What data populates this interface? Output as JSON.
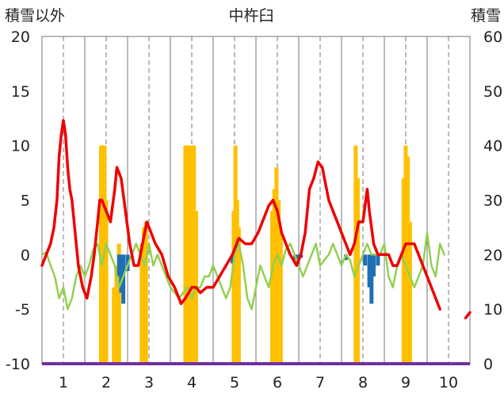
{
  "chart_data": {
    "type": "line",
    "title": "中杵臼",
    "y_left_label": "積雪以外",
    "y_right_label": "積雪",
    "y_left_range": [
      -10,
      20
    ],
    "y_right_range": [
      0,
      60
    ],
    "y_left_ticks": [
      "20",
      "15",
      "10",
      "5",
      "0",
      "-5",
      "-10"
    ],
    "y_right_ticks": [
      "60",
      "50",
      "40",
      "30",
      "20",
      "10",
      "0"
    ],
    "x_range": [
      0.5,
      10.5
    ],
    "x_ticks": [
      "1",
      "2",
      "3",
      "4",
      "5",
      "6",
      "7",
      "8",
      "9",
      "10"
    ],
    "grid": "vertical dashed at integer x, solid at half-integer x",
    "colors": {
      "red_line": "#ee0000",
      "green_line": "#92d050",
      "orange_bars": "#ffc000",
      "blue_bars": "#1f6fb4",
      "snow_baseline": "#7030a0",
      "grid": "#777777"
    },
    "series": [
      {
        "color": "red",
        "axis": "left",
        "points": [
          [
            0.5,
            -1
          ],
          [
            0.6,
            0
          ],
          [
            0.7,
            1
          ],
          [
            0.78,
            2.5
          ],
          [
            0.85,
            5
          ],
          [
            0.9,
            9
          ],
          [
            0.95,
            11
          ],
          [
            1.0,
            12.3
          ],
          [
            1.05,
            11
          ],
          [
            1.1,
            8
          ],
          [
            1.15,
            6
          ],
          [
            1.2,
            5
          ],
          [
            1.25,
            3
          ],
          [
            1.35,
            -1
          ],
          [
            1.45,
            -3
          ],
          [
            1.55,
            -4
          ],
          [
            1.65,
            -2
          ],
          [
            1.72,
            0
          ],
          [
            1.8,
            3
          ],
          [
            1.85,
            5
          ],
          [
            1.9,
            5
          ],
          [
            2.0,
            4
          ],
          [
            2.1,
            3
          ],
          [
            2.2,
            6
          ],
          [
            2.25,
            8
          ],
          [
            2.35,
            7
          ],
          [
            2.45,
            4
          ],
          [
            2.55,
            1
          ],
          [
            2.65,
            -1
          ],
          [
            2.75,
            -1
          ],
          [
            2.85,
            1
          ],
          [
            2.95,
            3
          ],
          [
            3.05,
            2
          ],
          [
            3.15,
            1
          ],
          [
            3.3,
            0
          ],
          [
            3.45,
            -2
          ],
          [
            3.6,
            -3
          ],
          [
            3.75,
            -4.5
          ],
          [
            3.85,
            -4
          ],
          [
            4.0,
            -3
          ],
          [
            4.1,
            -3
          ],
          [
            4.2,
            -3.5
          ],
          [
            4.35,
            -3
          ],
          [
            4.5,
            -3
          ],
          [
            4.65,
            -2
          ],
          [
            4.8,
            -1
          ],
          [
            4.95,
            0
          ],
          [
            5.1,
            1.5
          ],
          [
            5.25,
            1
          ],
          [
            5.4,
            1
          ],
          [
            5.55,
            2
          ],
          [
            5.7,
            3.5
          ],
          [
            5.8,
            4.5
          ],
          [
            5.9,
            5
          ],
          [
            6.0,
            4
          ],
          [
            6.1,
            2
          ],
          [
            6.2,
            1
          ],
          [
            6.3,
            0
          ],
          [
            6.45,
            -1
          ],
          [
            6.55,
            0
          ],
          [
            6.65,
            2
          ],
          [
            6.75,
            6
          ],
          [
            6.85,
            7
          ],
          [
            6.95,
            8.5
          ],
          [
            7.05,
            8
          ],
          [
            7.15,
            6
          ],
          [
            7.2,
            5
          ],
          [
            7.3,
            4
          ],
          [
            7.4,
            3
          ],
          [
            7.5,
            2
          ],
          [
            7.6,
            1
          ],
          [
            7.7,
            0
          ],
          [
            7.8,
            1
          ],
          [
            7.9,
            3
          ],
          [
            8.0,
            3
          ],
          [
            8.1,
            6
          ],
          [
            8.15,
            4
          ],
          [
            8.25,
            1
          ],
          [
            8.35,
            0
          ],
          [
            8.5,
            0
          ],
          [
            8.6,
            0
          ],
          [
            8.7,
            -1
          ],
          [
            8.8,
            -1
          ],
          [
            8.9,
            0
          ],
          [
            9.0,
            1
          ],
          [
            9.1,
            1
          ],
          [
            9.2,
            1
          ],
          [
            9.3,
            0
          ],
          [
            9.4,
            -1
          ],
          [
            9.5,
            -2
          ],
          [
            9.6,
            -3
          ],
          [
            9.7,
            -4
          ],
          [
            9.8,
            -5
          ]
        ]
      },
      {
        "color": "red",
        "axis": "left",
        "points": [
          [
            10.4,
            -5.8
          ],
          [
            10.5,
            -5.3
          ]
        ]
      },
      {
        "color": "green",
        "axis": "left",
        "points": [
          [
            0.5,
            0
          ],
          [
            0.6,
            0.2
          ],
          [
            0.7,
            -1
          ],
          [
            0.8,
            -2
          ],
          [
            0.9,
            -4
          ],
          [
            1.0,
            -3
          ],
          [
            1.1,
            -5
          ],
          [
            1.2,
            -4
          ],
          [
            1.3,
            -2
          ],
          [
            1.4,
            -1
          ],
          [
            1.5,
            -2
          ],
          [
            1.6,
            -1
          ],
          [
            1.7,
            0.5
          ],
          [
            1.8,
            1
          ],
          [
            1.9,
            -1
          ],
          [
            2.0,
            1
          ],
          [
            2.1,
            0
          ],
          [
            2.2,
            -1
          ],
          [
            2.3,
            -3
          ],
          [
            2.4,
            -2
          ],
          [
            2.5,
            -1
          ],
          [
            2.6,
            0
          ],
          [
            2.7,
            1
          ],
          [
            2.8,
            0
          ],
          [
            2.9,
            -1
          ],
          [
            3.0,
            1
          ],
          [
            3.1,
            -1
          ],
          [
            3.2,
            0
          ],
          [
            3.3,
            -1
          ],
          [
            3.4,
            -2
          ],
          [
            3.5,
            -3
          ],
          [
            3.6,
            -3.5
          ],
          [
            3.7,
            -4
          ],
          [
            3.8,
            -3.5
          ],
          [
            3.9,
            -3
          ],
          [
            4.0,
            -4
          ],
          [
            4.1,
            -3
          ],
          [
            4.2,
            -3
          ],
          [
            4.3,
            -2
          ],
          [
            4.4,
            -2
          ],
          [
            4.5,
            -1
          ],
          [
            4.6,
            -2
          ],
          [
            4.7,
            -3
          ],
          [
            4.8,
            -4
          ],
          [
            4.9,
            -3
          ],
          [
            5.0,
            0
          ],
          [
            5.1,
            1
          ],
          [
            5.2,
            -1
          ],
          [
            5.3,
            -4
          ],
          [
            5.4,
            -5
          ],
          [
            5.5,
            -3
          ],
          [
            5.6,
            -1
          ],
          [
            5.7,
            -2
          ],
          [
            5.8,
            -3
          ],
          [
            5.9,
            -1
          ],
          [
            6.0,
            0
          ],
          [
            6.1,
            -1
          ],
          [
            6.2,
            0.5
          ],
          [
            6.3,
            1
          ],
          [
            6.4,
            0
          ],
          [
            6.5,
            -1
          ],
          [
            6.6,
            -2
          ],
          [
            6.7,
            -1
          ],
          [
            6.8,
            0
          ],
          [
            6.9,
            1
          ],
          [
            7.0,
            -1
          ],
          [
            7.1,
            -0.5
          ],
          [
            7.2,
            0
          ],
          [
            7.3,
            1
          ],
          [
            7.4,
            0
          ],
          [
            7.5,
            -1
          ],
          [
            7.6,
            0
          ],
          [
            7.7,
            -0.5
          ],
          [
            7.8,
            -2
          ],
          [
            7.9,
            -1
          ],
          [
            8.0,
            0
          ],
          [
            8.1,
            1
          ],
          [
            8.2,
            0
          ],
          [
            8.3,
            0
          ],
          [
            8.4,
            0
          ],
          [
            8.5,
            1
          ],
          [
            8.6,
            -2
          ],
          [
            8.7,
            -3
          ],
          [
            8.8,
            -1
          ],
          [
            8.9,
            0
          ],
          [
            9.0,
            -1
          ],
          [
            9.1,
            -2
          ],
          [
            9.2,
            -3
          ],
          [
            9.3,
            -2
          ],
          [
            9.4,
            -1
          ],
          [
            9.5,
            2
          ],
          [
            9.6,
            -1
          ],
          [
            9.7,
            -2
          ],
          [
            9.8,
            1
          ],
          [
            9.9,
            0
          ]
        ]
      }
    ],
    "bars": [
      {
        "color": "orange",
        "axis": "right",
        "values": [
          [
            1.88,
            40
          ],
          [
            1.92,
            40
          ],
          [
            1.96,
            40
          ],
          [
            2.0,
            30
          ],
          [
            2.18,
            14
          ],
          [
            2.24,
            18
          ],
          [
            2.3,
            22
          ],
          [
            2.83,
            22
          ],
          [
            2.88,
            25
          ],
          [
            2.93,
            26
          ],
          [
            3.85,
            40
          ],
          [
            3.9,
            40
          ],
          [
            3.95,
            40
          ],
          [
            4.0,
            40
          ],
          [
            4.05,
            40
          ],
          [
            4.1,
            28
          ],
          [
            4.98,
            28
          ],
          [
            5.02,
            40
          ],
          [
            5.06,
            30
          ],
          [
            5.1,
            25
          ],
          [
            5.88,
            28
          ],
          [
            5.93,
            32
          ],
          [
            5.98,
            36
          ],
          [
            6.03,
            30
          ],
          [
            6.08,
            24
          ],
          [
            7.83,
            40
          ],
          [
            7.88,
            34
          ],
          [
            8.95,
            34
          ],
          [
            9.0,
            40
          ],
          [
            9.05,
            38
          ],
          [
            9.1,
            26
          ]
        ]
      },
      {
        "color": "blue",
        "axis": "left",
        "values": [
          [
            2.3,
            -2
          ],
          [
            2.35,
            -3.5
          ],
          [
            2.4,
            -4.5
          ],
          [
            2.5,
            -1.5
          ],
          [
            4.95,
            -0.8
          ],
          [
            6.42,
            -0.5
          ],
          [
            6.48,
            -1
          ],
          [
            6.55,
            -0.3
          ],
          [
            7.6,
            -0.5
          ],
          [
            8.05,
            -1
          ],
          [
            8.15,
            -3
          ],
          [
            8.2,
            -4.5
          ],
          [
            8.25,
            -2
          ],
          [
            8.35,
            -1
          ]
        ]
      }
    ]
  }
}
